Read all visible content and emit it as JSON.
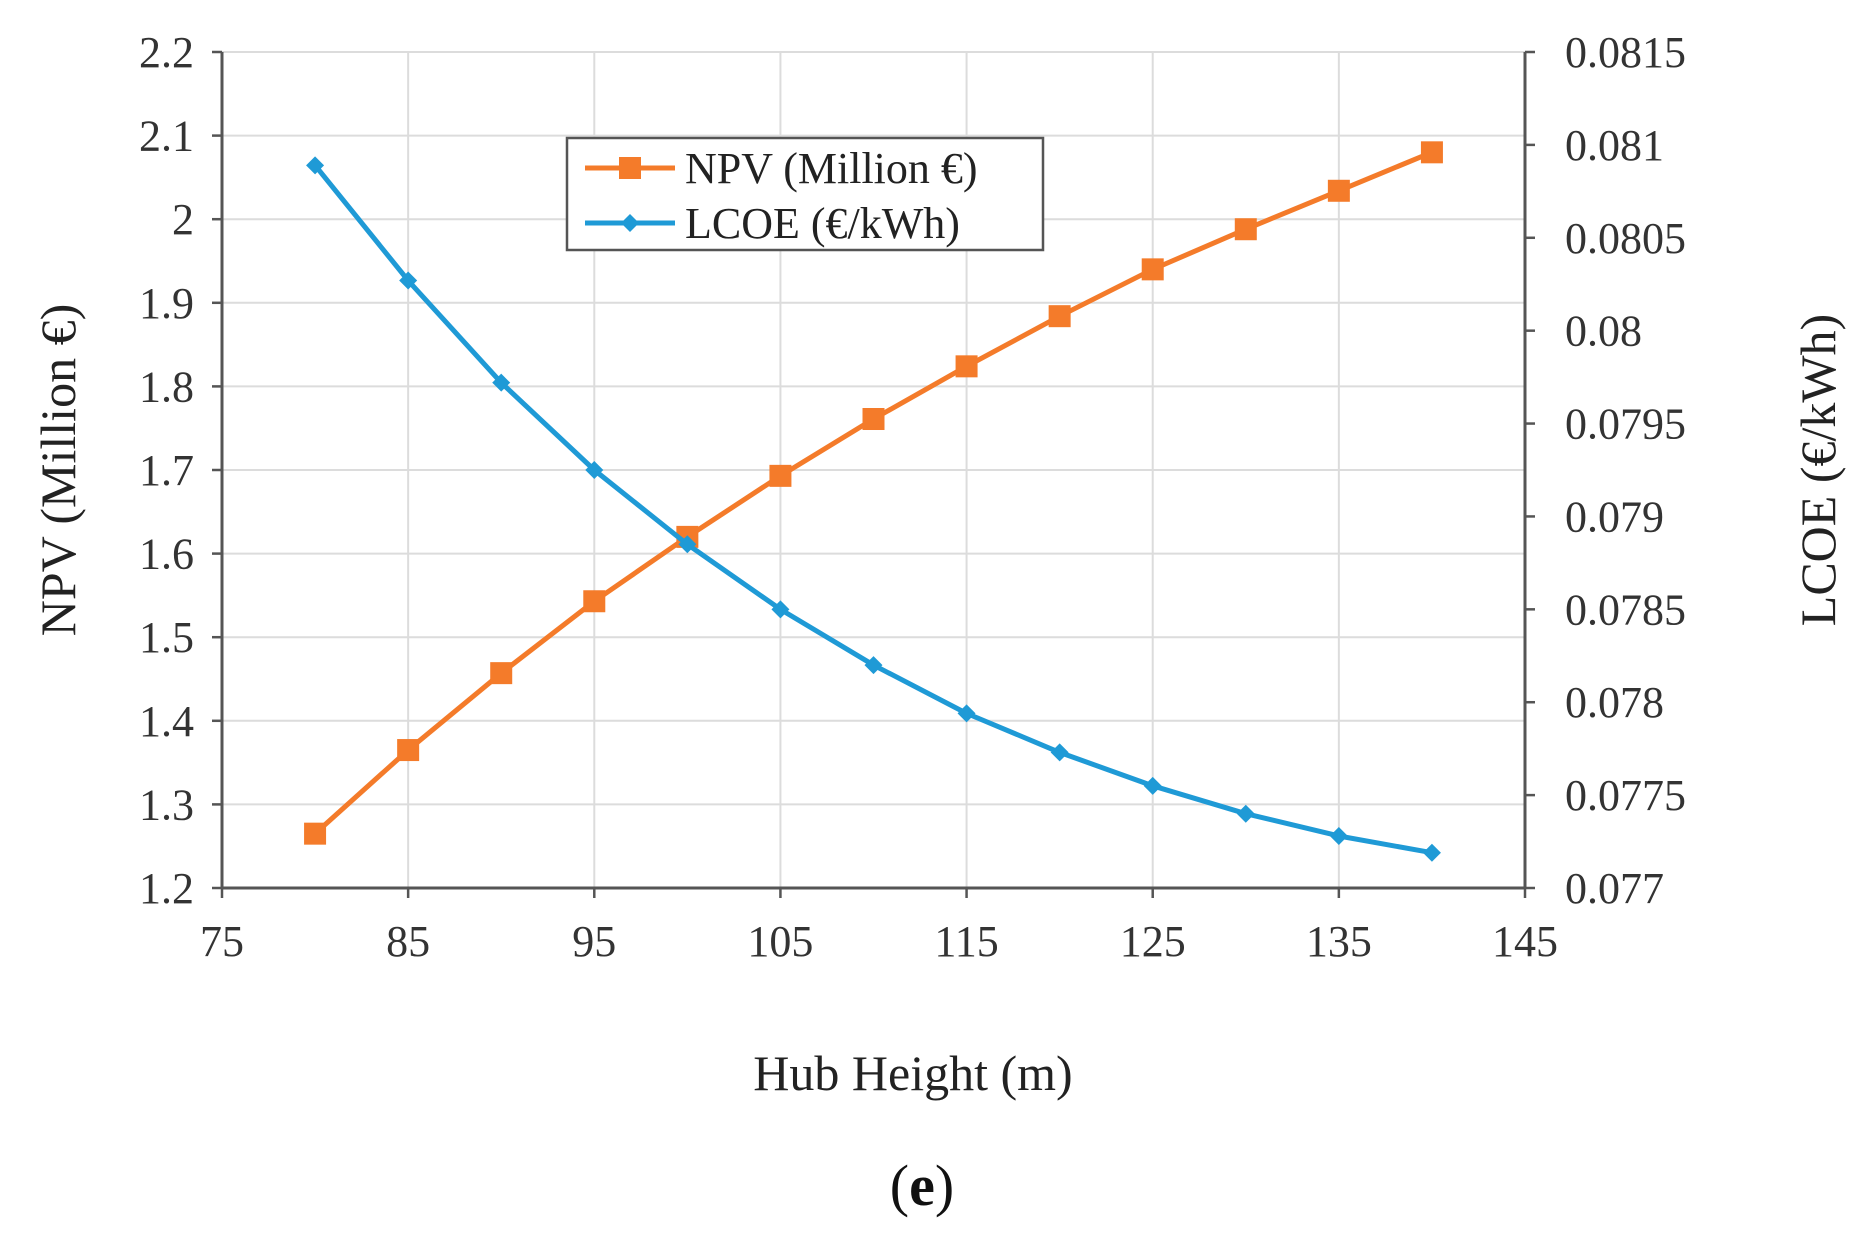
{
  "chart_data": {
    "type": "line",
    "title": "",
    "xlabel": "Hub Height (m)",
    "ylabel": "NPV (Million €)",
    "y2label": "LCOE (€/kWh)",
    "xlim": [
      75,
      145
    ],
    "ylim": [
      1.2,
      2.2
    ],
    "y2lim": [
      0.077,
      0.0815
    ],
    "grid": true,
    "legend_position": "top-center",
    "x_ticks": [
      "75",
      "85",
      "95",
      "105",
      "115",
      "125",
      "135",
      "145"
    ],
    "y_ticks": [
      "1.2",
      "1.3",
      "1.4",
      "1.5",
      "1.6",
      "1.7",
      "1.8",
      "1.9",
      "2",
      "2.1",
      "2.2"
    ],
    "y2_ticks": [
      "0.077",
      "0.0775",
      "0.078",
      "0.0785",
      "0.079",
      "0.0795",
      "0.08",
      "0.0805",
      "0.081",
      "0.0815"
    ],
    "x": [
      80,
      85,
      90,
      95,
      100,
      105,
      110,
      115,
      120,
      125,
      130,
      135,
      140
    ],
    "series": [
      {
        "name": "NPV (Million €)",
        "axis": "left",
        "marker": "square",
        "color": "#f47b2a",
        "values": [
          1.265,
          1.365,
          1.457,
          1.543,
          1.62,
          1.693,
          1.761,
          1.824,
          1.884,
          1.94,
          1.988,
          2.034,
          2.08
        ]
      },
      {
        "name": "LCOE (€/kWh)",
        "axis": "right",
        "marker": "diamond",
        "color": "#1f9ad6",
        "values": [
          0.08089,
          0.08027,
          0.07972,
          0.07925,
          0.07885,
          0.0785,
          0.0782,
          0.07794,
          0.07773,
          0.07755,
          0.0774,
          0.07728,
          0.07719
        ]
      }
    ]
  },
  "caption": {
    "open": "(",
    "letter": "e",
    "close": ")"
  }
}
